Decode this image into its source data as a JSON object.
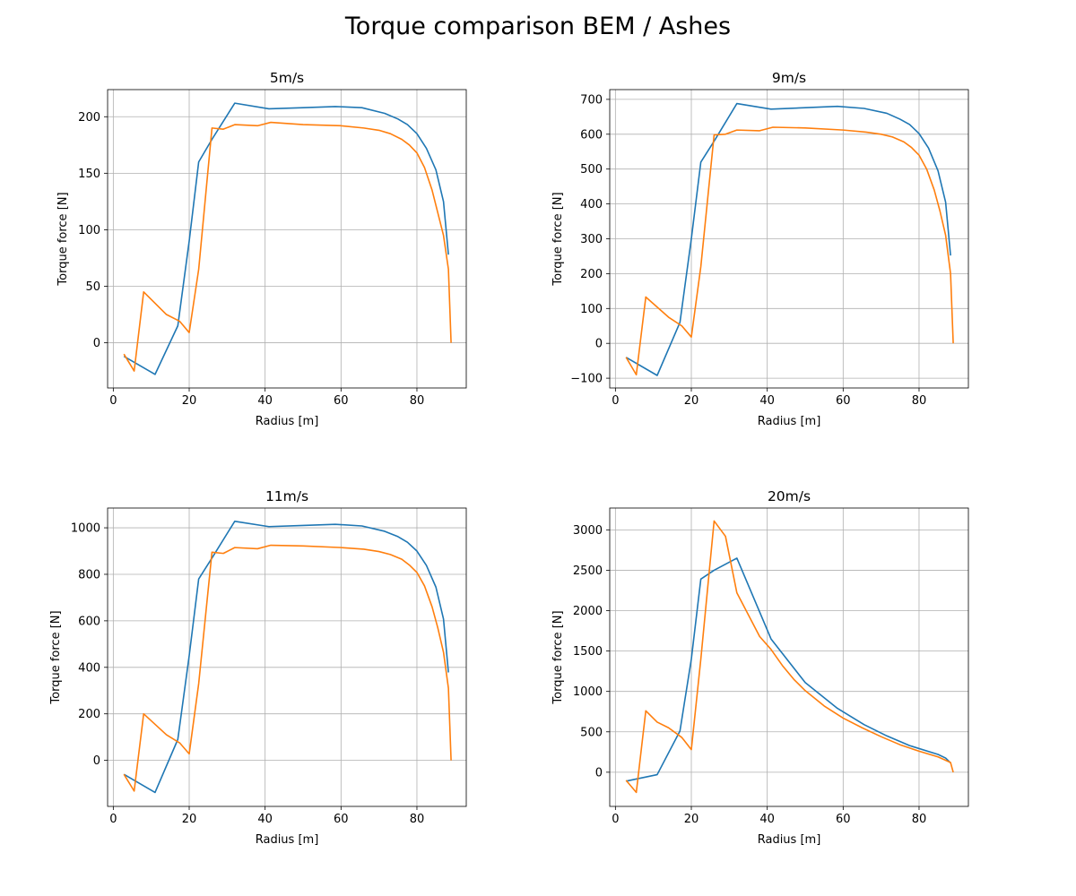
{
  "figure": {
    "title": "Torque comparison BEM / Ashes"
  },
  "colors": {
    "series_1": "#1f77b4",
    "series_2": "#ff7f0e",
    "grid": "#b0b0b0",
    "axes": "#000000"
  },
  "chart_data": [
    {
      "type": "line",
      "title": "5m/s",
      "xlabel": "Radius [m]",
      "ylabel": "Torque force [N]",
      "xlim": [
        -1.5,
        93
      ],
      "ylim": [
        -40,
        224
      ],
      "xticks": [
        0,
        20,
        40,
        60,
        80
      ],
      "yticks": [
        0,
        50,
        100,
        150,
        200
      ],
      "grid": true,
      "series": [
        {
          "x": [
            2.8,
            11,
            17,
            20,
            22.5,
            26,
            32,
            41,
            50,
            58.5,
            65.5,
            71.5,
            75,
            77.5,
            80,
            82.5,
            85,
            87,
            88.3
          ],
          "y": [
            -12,
            -28,
            15,
            90,
            160,
            180,
            212,
            207,
            208,
            209,
            208,
            203,
            198,
            193,
            185,
            172,
            153,
            125,
            78
          ]
        },
        {
          "x": [
            2.8,
            5.5,
            8,
            14,
            17.5,
            20,
            22.5,
            26,
            29,
            32,
            38,
            41.5,
            50,
            60,
            66,
            70,
            73,
            76,
            78,
            80,
            82,
            84,
            85.5,
            87,
            88.3,
            89
          ],
          "y": [
            -10,
            -25,
            45,
            25,
            19,
            9,
            65,
            190,
            189,
            193,
            192,
            195,
            193,
            192,
            190,
            188,
            185,
            180,
            175,
            168,
            155,
            135,
            115,
            95,
            65,
            0
          ]
        }
      ]
    },
    {
      "type": "line",
      "title": "9m/s",
      "xlabel": "Radius [m]",
      "ylabel": "Torque force [N]",
      "xlim": [
        -1.5,
        93
      ],
      "ylim": [
        -128,
        728
      ],
      "xticks": [
        0,
        20,
        40,
        60,
        80
      ],
      "yticks": [
        -100,
        0,
        100,
        200,
        300,
        400,
        500,
        600,
        700
      ],
      "grid": true,
      "series": [
        {
          "x": [
            2.8,
            11,
            17,
            20,
            22.5,
            26,
            32,
            41,
            50,
            58.5,
            65.5,
            71.5,
            75,
            77.5,
            80,
            82.5,
            85,
            87,
            88.3
          ],
          "y": [
            -40,
            -92,
            60,
            300,
            520,
            580,
            688,
            672,
            676,
            680,
            674,
            660,
            643,
            628,
            602,
            560,
            495,
            405,
            252
          ]
        },
        {
          "x": [
            2.8,
            5.5,
            8,
            14,
            17.5,
            20,
            22.5,
            26,
            29,
            32,
            38,
            41.5,
            50,
            60,
            66,
            70,
            73,
            76,
            78,
            80,
            82,
            84,
            85.5,
            87,
            88.3,
            89
          ],
          "y": [
            -40,
            -90,
            133,
            75,
            50,
            18,
            220,
            598,
            600,
            612,
            610,
            620,
            618,
            612,
            606,
            600,
            592,
            578,
            562,
            540,
            500,
            440,
            380,
            310,
            200,
            0
          ]
        }
      ]
    },
    {
      "type": "line",
      "title": "11m/s",
      "xlabel": "Radius [m]",
      "ylabel": "Torque force [N]",
      "xlim": [
        -1.5,
        93
      ],
      "ylim": [
        -198,
        1085
      ],
      "xticks": [
        0,
        20,
        40,
        60,
        80
      ],
      "yticks": [
        0,
        200,
        400,
        600,
        800,
        1000
      ],
      "grid": true,
      "series": [
        {
          "x": [
            2.8,
            11,
            17,
            20,
            22.5,
            26,
            32,
            41,
            50,
            58.5,
            65.5,
            71.5,
            75,
            77.5,
            80,
            82.5,
            85,
            87,
            88.3
          ],
          "y": [
            -60,
            -138,
            90,
            450,
            780,
            870,
            1028,
            1005,
            1010,
            1015,
            1008,
            985,
            962,
            938,
            900,
            838,
            745,
            608,
            378
          ]
        },
        {
          "x": [
            2.8,
            5.5,
            8,
            14,
            17.5,
            20,
            22.5,
            26,
            29,
            32,
            38,
            41.5,
            50,
            60,
            66,
            70,
            73,
            76,
            78,
            80,
            82,
            84,
            85.5,
            87,
            88.3,
            89
          ],
          "y": [
            -60,
            -132,
            200,
            110,
            75,
            28,
            330,
            895,
            890,
            915,
            910,
            925,
            922,
            915,
            908,
            898,
            885,
            865,
            840,
            808,
            750,
            660,
            570,
            465,
            310,
            0
          ]
        }
      ]
    },
    {
      "type": "line",
      "title": "20m/s",
      "xlabel": "Radius [m]",
      "ylabel": "Torque force [N]",
      "xlim": [
        -1.5,
        93
      ],
      "ylim": [
        -423,
        3270
      ],
      "xticks": [
        0,
        20,
        40,
        60,
        80
      ],
      "yticks": [
        0,
        500,
        1000,
        1500,
        2000,
        2500,
        3000
      ],
      "grid": true,
      "series": [
        {
          "x": [
            2.8,
            11,
            17,
            20,
            22.5,
            26,
            32,
            41,
            50,
            58.5,
            65.5,
            71.5,
            77.5,
            85,
            87,
            88.3
          ],
          "y": [
            -110,
            -30,
            510,
            1400,
            2390,
            2500,
            2650,
            1650,
            1110,
            790,
            590,
            450,
            330,
            220,
            175,
            115
          ]
        },
        {
          "x": [
            2.8,
            5.5,
            8,
            11,
            14,
            17.5,
            20,
            22.5,
            26,
            29,
            32,
            35,
            38,
            41,
            44,
            47,
            50,
            55,
            60,
            65,
            70,
            75,
            80,
            85,
            88.3,
            89
          ],
          "y": [
            -100,
            -250,
            760,
            620,
            550,
            430,
            280,
            1400,
            3110,
            2920,
            2220,
            1950,
            1680,
            1520,
            1320,
            1150,
            1010,
            820,
            670,
            550,
            440,
            340,
            260,
            190,
            120,
            0
          ]
        }
      ]
    }
  ]
}
